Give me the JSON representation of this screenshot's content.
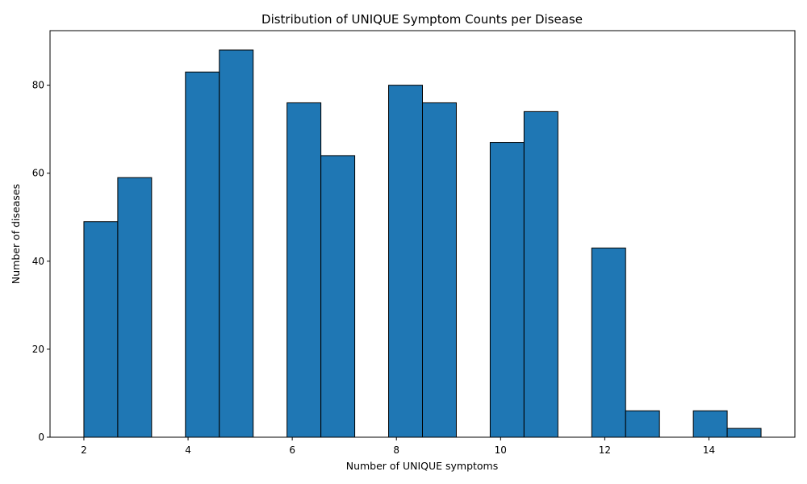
{
  "chart_data": {
    "type": "histogram",
    "title": "Distribution of UNIQUE Symptom Counts per Disease",
    "xlabel": "Number of UNIQUE symptoms",
    "ylabel": "Number of diseases",
    "bins": [
      2,
      2.65,
      3.3,
      3.95,
      4.6,
      5.25,
      5.9,
      6.55,
      7.2,
      7.85,
      8.5,
      9.15,
      9.8,
      10.45,
      11.1,
      11.75,
      12.4,
      13.05,
      13.7,
      14.35,
      15
    ],
    "counts": [
      49,
      59,
      0,
      83,
      88,
      0,
      76,
      64,
      0,
      80,
      76,
      0,
      67,
      74,
      0,
      43,
      6,
      0,
      6,
      2
    ],
    "color": "#1f77b4",
    "edgecolor": "#000000",
    "xlim": [
      1.35,
      15.65
    ],
    "ylim": [
      0,
      92.4
    ],
    "xticks": [
      2,
      4,
      6,
      8,
      10,
      12,
      14
    ],
    "yticks": [
      0,
      20,
      40,
      60,
      80
    ]
  }
}
